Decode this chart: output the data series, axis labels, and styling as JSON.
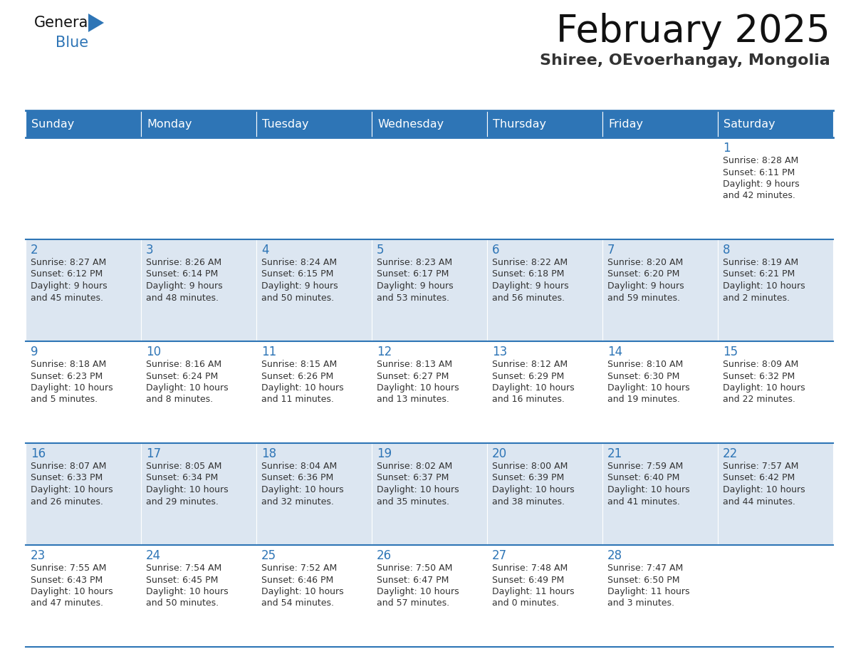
{
  "title": "February 2025",
  "subtitle": "Shiree, OEvoerhangay, Mongolia",
  "header_color": "#2e75b6",
  "header_text_color": "#ffffff",
  "weekdays": [
    "Sunday",
    "Monday",
    "Tuesday",
    "Wednesday",
    "Thursday",
    "Friday",
    "Saturday"
  ],
  "cell_bg_row0": "#ffffff",
  "cell_bg_row1": "#dce6f1",
  "cell_bg_row2": "#ffffff",
  "cell_bg_row3": "#dce6f1",
  "cell_bg_row4": "#ffffff",
  "day_number_color": "#2e75b6",
  "info_text_color": "#333333",
  "border_color": "#2e75b6",
  "days": [
    {
      "day": 1,
      "col": 6,
      "row": 0,
      "sunrise": "8:28 AM",
      "sunset": "6:11 PM",
      "daylight_h": "9 hours",
      "daylight_m": "42 minutes"
    },
    {
      "day": 2,
      "col": 0,
      "row": 1,
      "sunrise": "8:27 AM",
      "sunset": "6:12 PM",
      "daylight_h": "9 hours",
      "daylight_m": "45 minutes"
    },
    {
      "day": 3,
      "col": 1,
      "row": 1,
      "sunrise": "8:26 AM",
      "sunset": "6:14 PM",
      "daylight_h": "9 hours",
      "daylight_m": "48 minutes"
    },
    {
      "day": 4,
      "col": 2,
      "row": 1,
      "sunrise": "8:24 AM",
      "sunset": "6:15 PM",
      "daylight_h": "9 hours",
      "daylight_m": "50 minutes"
    },
    {
      "day": 5,
      "col": 3,
      "row": 1,
      "sunrise": "8:23 AM",
      "sunset": "6:17 PM",
      "daylight_h": "9 hours",
      "daylight_m": "53 minutes"
    },
    {
      "day": 6,
      "col": 4,
      "row": 1,
      "sunrise": "8:22 AM",
      "sunset": "6:18 PM",
      "daylight_h": "9 hours",
      "daylight_m": "56 minutes"
    },
    {
      "day": 7,
      "col": 5,
      "row": 1,
      "sunrise": "8:20 AM",
      "sunset": "6:20 PM",
      "daylight_h": "9 hours",
      "daylight_m": "59 minutes"
    },
    {
      "day": 8,
      "col": 6,
      "row": 1,
      "sunrise": "8:19 AM",
      "sunset": "6:21 PM",
      "daylight_h": "10 hours",
      "daylight_m": "2 minutes"
    },
    {
      "day": 9,
      "col": 0,
      "row": 2,
      "sunrise": "8:18 AM",
      "sunset": "6:23 PM",
      "daylight_h": "10 hours",
      "daylight_m": "5 minutes"
    },
    {
      "day": 10,
      "col": 1,
      "row": 2,
      "sunrise": "8:16 AM",
      "sunset": "6:24 PM",
      "daylight_h": "10 hours",
      "daylight_m": "8 minutes"
    },
    {
      "day": 11,
      "col": 2,
      "row": 2,
      "sunrise": "8:15 AM",
      "sunset": "6:26 PM",
      "daylight_h": "10 hours",
      "daylight_m": "11 minutes"
    },
    {
      "day": 12,
      "col": 3,
      "row": 2,
      "sunrise": "8:13 AM",
      "sunset": "6:27 PM",
      "daylight_h": "10 hours",
      "daylight_m": "13 minutes"
    },
    {
      "day": 13,
      "col": 4,
      "row": 2,
      "sunrise": "8:12 AM",
      "sunset": "6:29 PM",
      "daylight_h": "10 hours",
      "daylight_m": "16 minutes"
    },
    {
      "day": 14,
      "col": 5,
      "row": 2,
      "sunrise": "8:10 AM",
      "sunset": "6:30 PM",
      "daylight_h": "10 hours",
      "daylight_m": "19 minutes"
    },
    {
      "day": 15,
      "col": 6,
      "row": 2,
      "sunrise": "8:09 AM",
      "sunset": "6:32 PM",
      "daylight_h": "10 hours",
      "daylight_m": "22 minutes"
    },
    {
      "day": 16,
      "col": 0,
      "row": 3,
      "sunrise": "8:07 AM",
      "sunset": "6:33 PM",
      "daylight_h": "10 hours",
      "daylight_m": "26 minutes"
    },
    {
      "day": 17,
      "col": 1,
      "row": 3,
      "sunrise": "8:05 AM",
      "sunset": "6:34 PM",
      "daylight_h": "10 hours",
      "daylight_m": "29 minutes"
    },
    {
      "day": 18,
      "col": 2,
      "row": 3,
      "sunrise": "8:04 AM",
      "sunset": "6:36 PM",
      "daylight_h": "10 hours",
      "daylight_m": "32 minutes"
    },
    {
      "day": 19,
      "col": 3,
      "row": 3,
      "sunrise": "8:02 AM",
      "sunset": "6:37 PM",
      "daylight_h": "10 hours",
      "daylight_m": "35 minutes"
    },
    {
      "day": 20,
      "col": 4,
      "row": 3,
      "sunrise": "8:00 AM",
      "sunset": "6:39 PM",
      "daylight_h": "10 hours",
      "daylight_m": "38 minutes"
    },
    {
      "day": 21,
      "col": 5,
      "row": 3,
      "sunrise": "7:59 AM",
      "sunset": "6:40 PM",
      "daylight_h": "10 hours",
      "daylight_m": "41 minutes"
    },
    {
      "day": 22,
      "col": 6,
      "row": 3,
      "sunrise": "7:57 AM",
      "sunset": "6:42 PM",
      "daylight_h": "10 hours",
      "daylight_m": "44 minutes"
    },
    {
      "day": 23,
      "col": 0,
      "row": 4,
      "sunrise": "7:55 AM",
      "sunset": "6:43 PM",
      "daylight_h": "10 hours",
      "daylight_m": "47 minutes"
    },
    {
      "day": 24,
      "col": 1,
      "row": 4,
      "sunrise": "7:54 AM",
      "sunset": "6:45 PM",
      "daylight_h": "10 hours",
      "daylight_m": "50 minutes"
    },
    {
      "day": 25,
      "col": 2,
      "row": 4,
      "sunrise": "7:52 AM",
      "sunset": "6:46 PM",
      "daylight_h": "10 hours",
      "daylight_m": "54 minutes"
    },
    {
      "day": 26,
      "col": 3,
      "row": 4,
      "sunrise": "7:50 AM",
      "sunset": "6:47 PM",
      "daylight_h": "10 hours",
      "daylight_m": "57 minutes"
    },
    {
      "day": 27,
      "col": 4,
      "row": 4,
      "sunrise": "7:48 AM",
      "sunset": "6:49 PM",
      "daylight_h": "11 hours",
      "daylight_m": "0 minutes"
    },
    {
      "day": 28,
      "col": 5,
      "row": 4,
      "sunrise": "7:47 AM",
      "sunset": "6:50 PM",
      "daylight_h": "11 hours",
      "daylight_m": "3 minutes"
    }
  ],
  "num_rows": 5,
  "num_cols": 7
}
